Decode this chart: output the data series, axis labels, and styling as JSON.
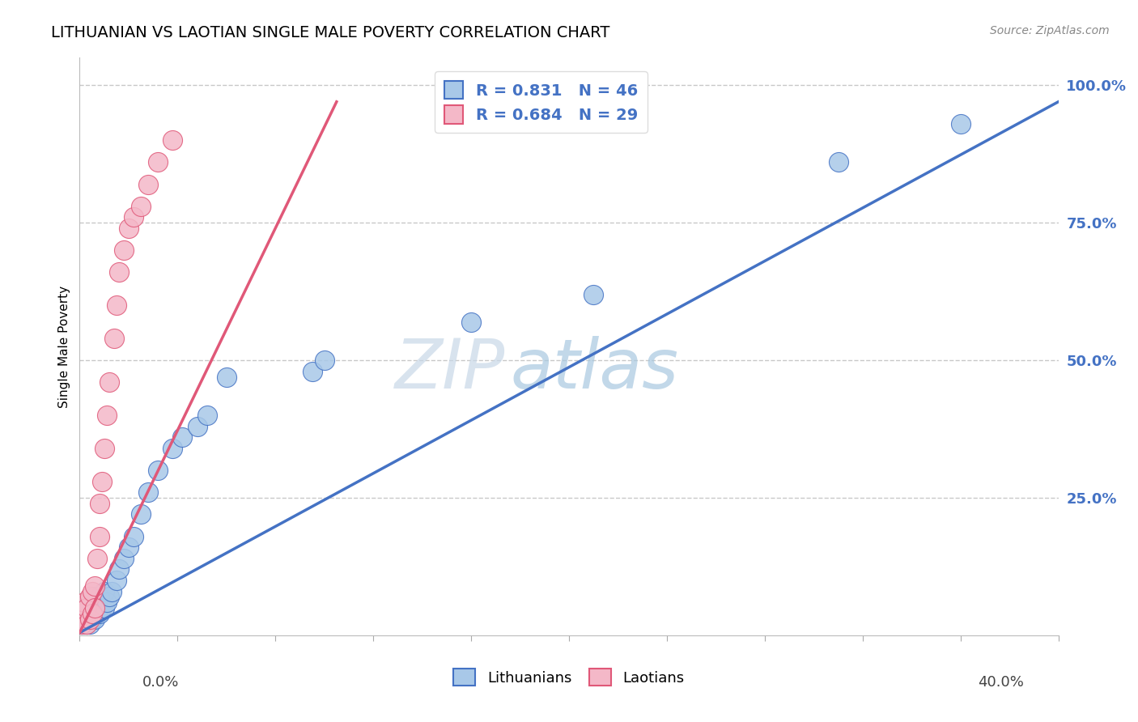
{
  "title": "LITHUANIAN VS LAOTIAN SINGLE MALE POVERTY CORRELATION CHART",
  "source": "Source: ZipAtlas.com",
  "ylabel": "Single Male Poverty",
  "blue_R": 0.831,
  "blue_N": 46,
  "pink_R": 0.684,
  "pink_N": 29,
  "blue_color": "#a8c8e8",
  "pink_color": "#f4b8c8",
  "blue_line_color": "#4472c4",
  "pink_line_color": "#e05878",
  "blue_scatter_x": [
    0.001,
    0.001,
    0.002,
    0.002,
    0.002,
    0.003,
    0.003,
    0.003,
    0.004,
    0.004,
    0.004,
    0.005,
    0.005,
    0.005,
    0.006,
    0.006,
    0.006,
    0.007,
    0.007,
    0.008,
    0.008,
    0.009,
    0.01,
    0.01,
    0.011,
    0.012,
    0.013,
    0.015,
    0.016,
    0.018,
    0.02,
    0.022,
    0.025,
    0.028,
    0.032,
    0.038,
    0.042,
    0.048,
    0.052,
    0.06,
    0.095,
    0.1,
    0.16,
    0.21,
    0.31,
    0.36
  ],
  "blue_scatter_y": [
    0.02,
    0.03,
    0.02,
    0.03,
    0.04,
    0.02,
    0.03,
    0.05,
    0.02,
    0.04,
    0.06,
    0.03,
    0.04,
    0.06,
    0.03,
    0.05,
    0.07,
    0.04,
    0.06,
    0.04,
    0.07,
    0.05,
    0.05,
    0.08,
    0.06,
    0.07,
    0.08,
    0.1,
    0.12,
    0.14,
    0.16,
    0.18,
    0.22,
    0.26,
    0.3,
    0.34,
    0.36,
    0.38,
    0.4,
    0.47,
    0.48,
    0.5,
    0.57,
    0.62,
    0.86,
    0.93
  ],
  "pink_scatter_x": [
    0.001,
    0.001,
    0.002,
    0.002,
    0.003,
    0.003,
    0.004,
    0.004,
    0.005,
    0.005,
    0.006,
    0.006,
    0.007,
    0.008,
    0.008,
    0.009,
    0.01,
    0.011,
    0.012,
    0.014,
    0.015,
    0.016,
    0.018,
    0.02,
    0.022,
    0.025,
    0.028,
    0.032,
    0.038
  ],
  "pink_scatter_y": [
    0.02,
    0.04,
    0.03,
    0.06,
    0.02,
    0.05,
    0.03,
    0.07,
    0.04,
    0.08,
    0.05,
    0.09,
    0.14,
    0.18,
    0.24,
    0.28,
    0.34,
    0.4,
    0.46,
    0.54,
    0.6,
    0.66,
    0.7,
    0.74,
    0.76,
    0.78,
    0.82,
    0.86,
    0.9
  ],
  "blue_line_x": [
    0.0,
    0.4
  ],
  "blue_line_y": [
    0.005,
    0.97
  ],
  "pink_line_x": [
    0.0,
    0.105
  ],
  "pink_line_y": [
    0.005,
    0.97
  ],
  "xlim": [
    0,
    0.4
  ],
  "ylim": [
    0,
    1.05
  ],
  "ytick_vals": [
    0.25,
    0.5,
    0.75,
    1.0
  ],
  "ytick_labels": [
    "25.0%",
    "50.0%",
    "75.0%",
    "100.0%"
  ],
  "xtick_label_left": "0.0%",
  "xtick_label_right": "40.0%",
  "legend_label_blue": "R = 0.831   N = 46",
  "legend_label_pink": "R = 0.684   N = 29",
  "bottom_legend_labels": [
    "Lithuanians",
    "Laotians"
  ],
  "watermark_zip": "ZIP",
  "watermark_atlas": "atlas",
  "title_fontsize": 14,
  "source_fontsize": 10
}
